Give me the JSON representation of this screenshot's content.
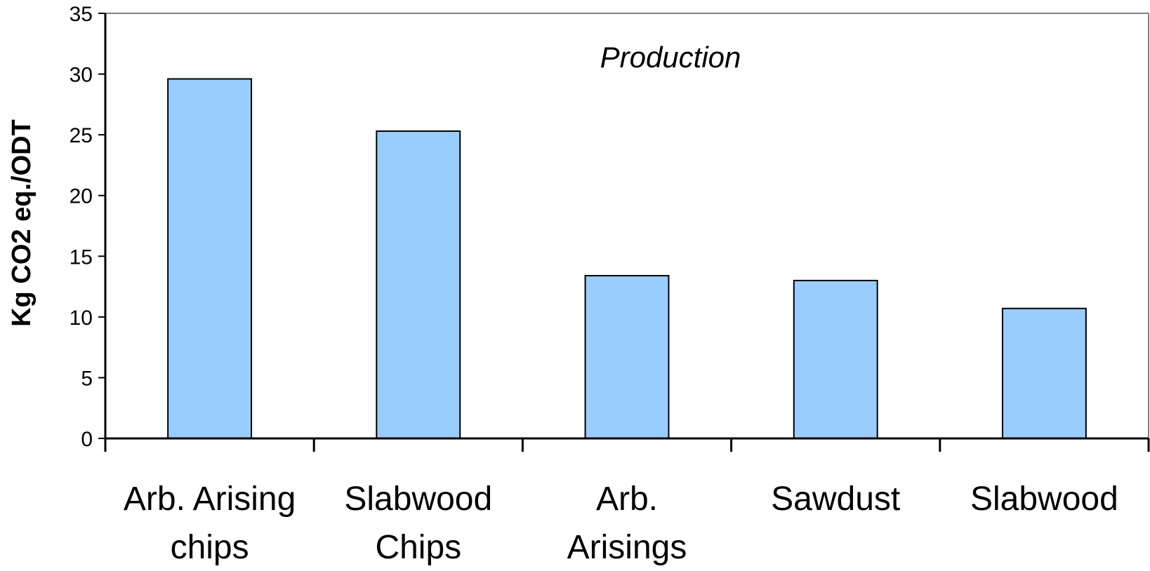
{
  "chart_data": {
    "type": "bar",
    "annotation": "Production",
    "ylabel": "Kg CO2 eq./ODT",
    "xlabel": "",
    "ylim": [
      0,
      35
    ],
    "yticks": [
      0,
      5,
      10,
      15,
      20,
      25,
      30,
      35
    ],
    "categories": [
      [
        "Arb. Arising",
        "chips"
      ],
      [
        "Slabwood",
        "Chips"
      ],
      [
        "Arb.",
        "Arisings"
      ],
      [
        "Sawdust"
      ],
      [
        "Slabwood"
      ]
    ],
    "values": [
      29.6,
      25.3,
      13.4,
      13.0,
      10.7
    ],
    "bar_color": "#99ccff",
    "bar_outline": "#000000",
    "grid": false,
    "legend": "none"
  }
}
